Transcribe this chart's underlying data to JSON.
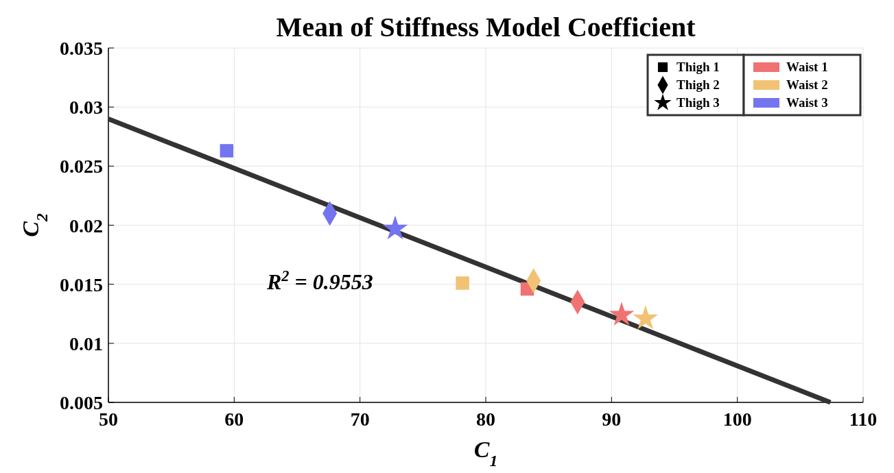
{
  "chart_data": {
    "type": "scatter",
    "title": "Mean of Stiffness Model Coefficient",
    "xlabel": "C$_{1}$",
    "ylabel": "C$_{2}$",
    "series": [
      {
        "name": "Thigh 1",
        "marker": "square",
        "color": "#000000",
        "colors": [
          "#f07272",
          "#f2c274",
          "#7474f0"
        ],
        "x": [
          83.3,
          78.15,
          59.4
        ],
        "values": [
          0.0146,
          0.0151,
          0.0263
        ]
      },
      {
        "name": "Thigh 2",
        "marker": "diamond",
        "color": "#000000",
        "colors": [
          "#f07272",
          "#f2c274",
          "#7474f0"
        ],
        "x": [
          87.3,
          83.8,
          67.6
        ],
        "values": [
          0.0135,
          0.0153,
          0.021
        ]
      },
      {
        "name": "Thigh 3",
        "marker": "star",
        "color": "#000000",
        "colors": [
          "#f07272",
          "#f2c274",
          "#7474f0"
        ],
        "x": [
          90.8,
          92.7,
          72.8
        ],
        "values": [
          0.0124,
          0.0121,
          0.0197
        ]
      },
      {
        "name": "Waist 1",
        "color": "#f07272"
      },
      {
        "name": "Waist 2",
        "color": "#f2c274"
      },
      {
        "name": "Waist 3",
        "color": "#7474f0"
      },
      {
        "type": "line",
        "color": "#333333",
        "x": [
          50,
          107.4
        ],
        "values": [
          0.029,
          0.005
        ]
      }
    ],
    "annotations": [
      "R$^{2}$ = 0.9553"
    ],
    "xlim": [
      50,
      110
    ],
    "xticks": [
      50,
      60,
      70,
      80,
      90,
      100,
      110
    ],
    "ylim": [
      0.005,
      0.035
    ],
    "yticks": [
      0.005,
      0.01,
      0.015,
      0.02,
      0.025,
      0.03,
      0.035
    ],
    "grid": true,
    "legend": "top right"
  }
}
